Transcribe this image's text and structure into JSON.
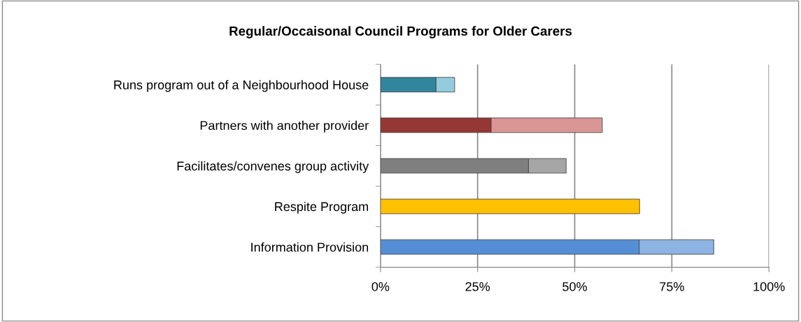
{
  "chart_data": {
    "type": "bar",
    "orientation": "horizontal",
    "stacked": true,
    "title": "Regular/Occaisonal Council Programs for Older Carers",
    "categories": [
      "Runs program out of a Neighbourhood House",
      "Partners with another provider",
      "Facilitates/convenes group activity",
      "Respite Program",
      "Information Provision"
    ],
    "series": [
      {
        "colors": [
          "#31859c",
          "#953735",
          "#7f7f7f",
          "#ffc000",
          "#558ed5"
        ],
        "values": [
          14.3,
          28.5,
          38.1,
          66.7,
          66.6
        ]
      },
      {
        "colors": [
          "#93cddd",
          "#d99694",
          "#a6a6a6",
          "#ffc000",
          "#8db3e2"
        ],
        "values": [
          4.8,
          28.6,
          9.7,
          null,
          19.2
        ]
      }
    ],
    "xlim": [
      0,
      100
    ],
    "xticks": [
      {
        "value": 0,
        "label": "0%"
      },
      {
        "value": 25,
        "label": "25%"
      },
      {
        "value": 50,
        "label": "50%"
      },
      {
        "value": 75,
        "label": "75%"
      },
      {
        "value": 100,
        "label": "100%"
      }
    ],
    "grid": "x",
    "legend": false
  }
}
